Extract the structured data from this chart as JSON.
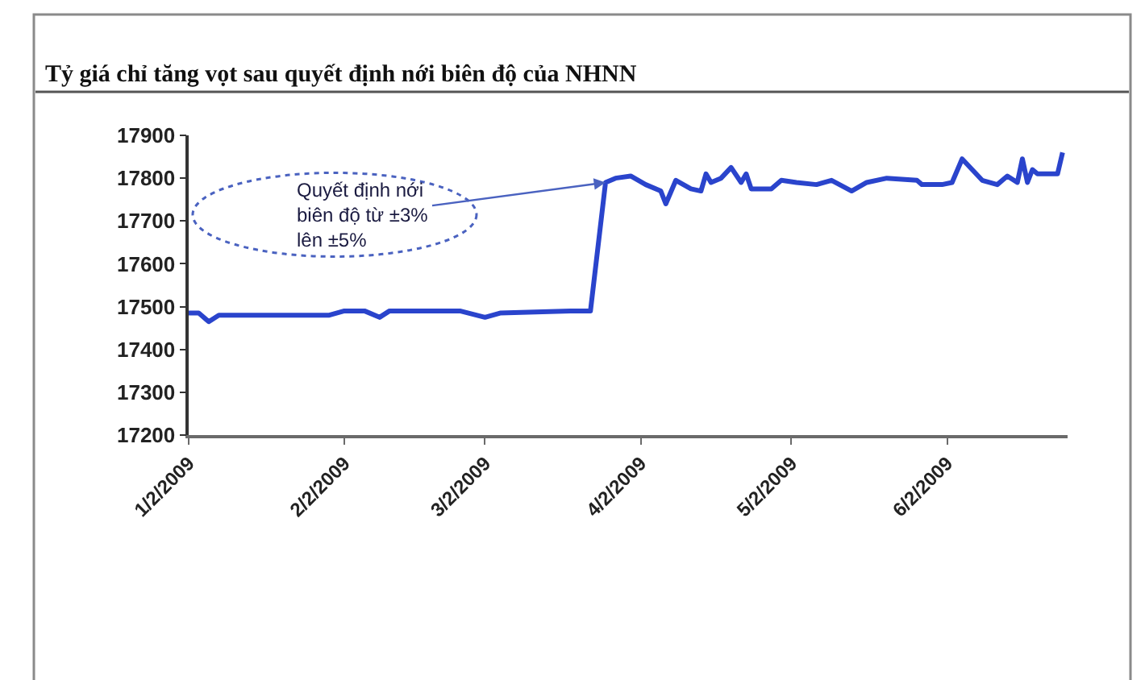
{
  "chart_data": {
    "type": "line",
    "title": "Tỷ giá chỉ tăng vọt sau quyết định nới biên độ của NHNN",
    "x": [
      "2009-01-02",
      "2009-01-04",
      "2009-01-06",
      "2009-01-08",
      "2009-01-19",
      "2009-01-30",
      "2009-02-02",
      "2009-02-06",
      "2009-02-09",
      "2009-02-11",
      "2009-02-17",
      "2009-02-25",
      "2009-03-02",
      "2009-03-05",
      "2009-03-19",
      "2009-03-23",
      "2009-03-26",
      "2009-03-28",
      "2009-03-31",
      "2009-04-03",
      "2009-04-06",
      "2009-04-07",
      "2009-04-09",
      "2009-04-12",
      "2009-04-14",
      "2009-04-15",
      "2009-04-16",
      "2009-04-18",
      "2009-04-20",
      "2009-04-22",
      "2009-04-23",
      "2009-04-24",
      "2009-04-28",
      "2009-04-30",
      "2009-05-03",
      "2009-05-07",
      "2009-05-10",
      "2009-05-14",
      "2009-05-17",
      "2009-05-21",
      "2009-05-27",
      "2009-05-28",
      "2009-06-01",
      "2009-06-03",
      "2009-06-05",
      "2009-06-07",
      "2009-06-09",
      "2009-06-12",
      "2009-06-14",
      "2009-06-16",
      "2009-06-17",
      "2009-06-18",
      "2009-06-19",
      "2009-06-20",
      "2009-06-24",
      "2009-06-25"
    ],
    "series": [
      {
        "color": "#2a44cc",
        "values": [
          17485,
          17485,
          17465,
          17480,
          17480,
          17480,
          17490,
          17490,
          17475,
          17490,
          17490,
          17490,
          17475,
          17485,
          17490,
          17490,
          17790,
          17800,
          17805,
          17785,
          17770,
          17740,
          17795,
          17775,
          17770,
          17810,
          17790,
          17800,
          17825,
          17790,
          17810,
          17775,
          17775,
          17795,
          17790,
          17785,
          17795,
          17770,
          17790,
          17800,
          17795,
          17785,
          17785,
          17790,
          17845,
          17820,
          17795,
          17785,
          17805,
          17790,
          17845,
          17790,
          17820,
          17810,
          17810,
          17860
        ]
      }
    ],
    "xlim": [
      "2009-01-02",
      "2009-06-26"
    ],
    "xticks": [
      {
        "value": "2009-01-02",
        "label": "1/2/2009"
      },
      {
        "value": "2009-02-02",
        "label": "2/2/2009"
      },
      {
        "value": "2009-03-02",
        "label": "3/2/2009"
      },
      {
        "value": "2009-04-02",
        "label": "4/2/2009"
      },
      {
        "value": "2009-05-02",
        "label": "5/2/2009"
      },
      {
        "value": "2009-06-02",
        "label": "6/2/2009"
      }
    ],
    "ylim": [
      17200,
      17900
    ],
    "yticks": [
      17200,
      17300,
      17400,
      17500,
      17600,
      17700,
      17800,
      17900
    ],
    "annotations": [
      {
        "text": "Quyết định nới\nbiên độ từ ±3%\nlên ±5%",
        "x": "2009-03-26",
        "y": 17790
      }
    ],
    "grid": false,
    "line_style": "solid"
  }
}
